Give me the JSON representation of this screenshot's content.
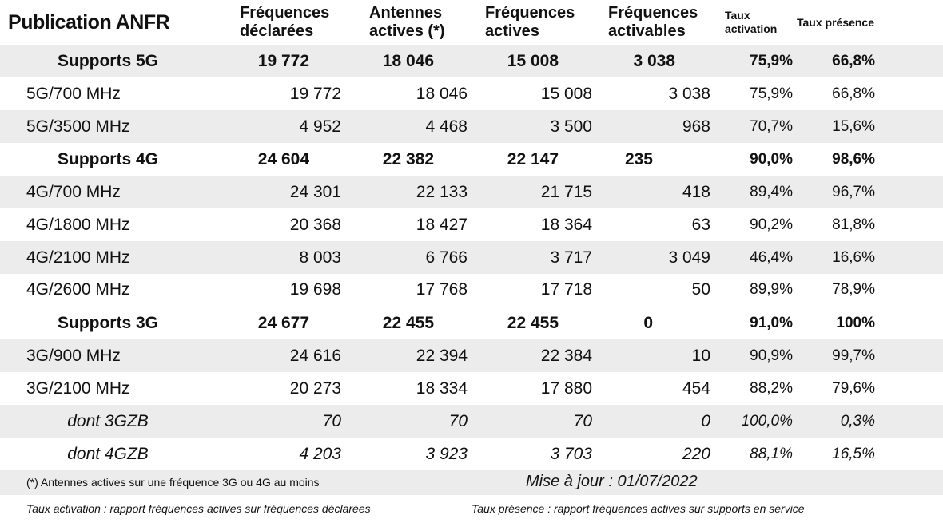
{
  "header": {
    "title": "Publication ANFR",
    "col1_line1": "Fréquences",
    "col1_line2": "déclarées",
    "col2_line1": "Antennes",
    "col2_line2": "actives (*)",
    "col3_line1": "Fréquences",
    "col3_line2": "actives",
    "col4_line1": "Fréquences",
    "col4_line2": "activables",
    "col5_line1": "Taux",
    "col5_line2": "activation",
    "col6": "Taux présence"
  },
  "rows": [
    {
      "label": "Supports 5G",
      "c1": "19 772",
      "c2": "18 046",
      "c3": "15 008",
      "c4": "3 038",
      "c5": "75,9%",
      "c6": "66,8%"
    },
    {
      "label": "5G/700 MHz",
      "c1": "19 772",
      "c2": "18 046",
      "c3": "15 008",
      "c4": "3 038",
      "c5": "75,9%",
      "c6": "66,8%"
    },
    {
      "label": "5G/3500 MHz",
      "c1": "4 952",
      "c2": "4 468",
      "c3": "3 500",
      "c4": "968",
      "c5": "70,7%",
      "c6": "15,6%"
    },
    {
      "label": "Supports 4G",
      "c1": "24 604",
      "c2": "22 382",
      "c3": "22 147",
      "c4": "235",
      "c5": "90,0%",
      "c6": "98,6%"
    },
    {
      "label": "4G/700 MHz",
      "c1": "24 301",
      "c2": "22 133",
      "c3": "21 715",
      "c4": "418",
      "c5": "89,4%",
      "c6": "96,7%"
    },
    {
      "label": "4G/1800 MHz",
      "c1": "20 368",
      "c2": "18 427",
      "c3": "18 364",
      "c4": "63",
      "c5": "90,2%",
      "c6": "81,8%"
    },
    {
      "label": "4G/2100 MHz",
      "c1": "8 003",
      "c2": "6 766",
      "c3": "3 717",
      "c4": "3 049",
      "c5": "46,4%",
      "c6": "16,6%"
    },
    {
      "label": "4G/2600 MHz",
      "c1": "19 698",
      "c2": "17 768",
      "c3": "17 718",
      "c4": "50",
      "c5": "89,9%",
      "c6": "78,9%"
    },
    {
      "label": "Supports 3G",
      "c1": "24 677",
      "c2": "22 455",
      "c3": "22 455",
      "c4": "0",
      "c5": "91,0%",
      "c6": "100%"
    },
    {
      "label": "3G/900 MHz",
      "c1": "24 616",
      "c2": "22 394",
      "c3": "22 384",
      "c4": "10",
      "c5": "90,9%",
      "c6": "99,7%"
    },
    {
      "label": "3G/2100 MHz",
      "c1": "20 273",
      "c2": "18 334",
      "c3": "17 880",
      "c4": "454",
      "c5": "88,2%",
      "c6": "79,6%"
    },
    {
      "label": "dont 3GZB",
      "c1": "70",
      "c2": "70",
      "c3": "70",
      "c4": "0",
      "c5": "100,0%",
      "c6": "0,3%"
    },
    {
      "label": "dont 4GZB",
      "c1": "4 203",
      "c2": "3 923",
      "c3": "3 703",
      "c4": "220",
      "c5": "88,1%",
      "c6": "16,5%"
    }
  ],
  "footer": {
    "note_antennes": "(*) Antennes actives sur une fréquence 3G ou 4G au moins",
    "update": "Mise à jour : 01/07/2022",
    "note_activation": "Taux activation : rapport fréquences actives sur fréquences déclarées",
    "note_presence": "Taux présence : rapport fréquences actives sur supports en service"
  }
}
